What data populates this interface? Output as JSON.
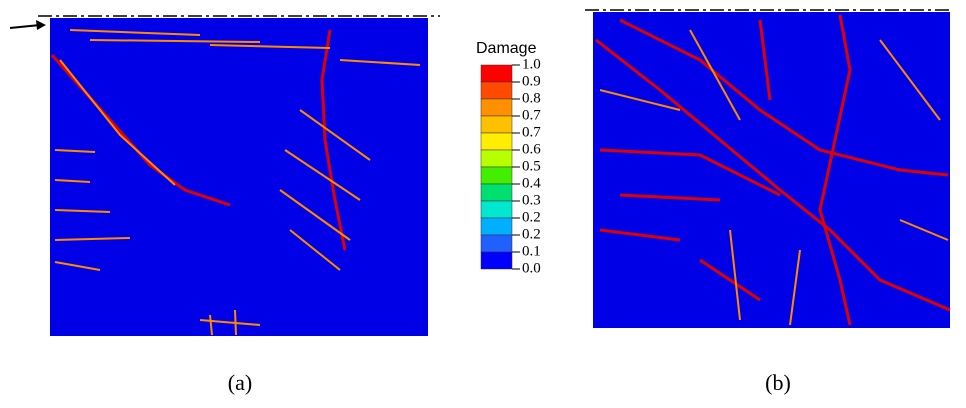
{
  "legend": {
    "title": "Damage",
    "labels": [
      "1.0",
      "0.9",
      "0.8",
      "0.7",
      "0.7",
      "0.6",
      "0.5",
      "0.4",
      "0.3",
      "0.2",
      "0.2",
      "0.1",
      "0.0"
    ],
    "colors": [
      "#ff0000",
      "#ff4a00",
      "#ff9000",
      "#ffc000",
      "#ffee00",
      "#b8ff00",
      "#44ee00",
      "#00e070",
      "#00e8d0",
      "#00b0ff",
      "#2060ff",
      "#0000ff"
    ]
  },
  "panels": [
    {
      "label": "(a)"
    },
    {
      "label": "(b)"
    }
  ]
}
